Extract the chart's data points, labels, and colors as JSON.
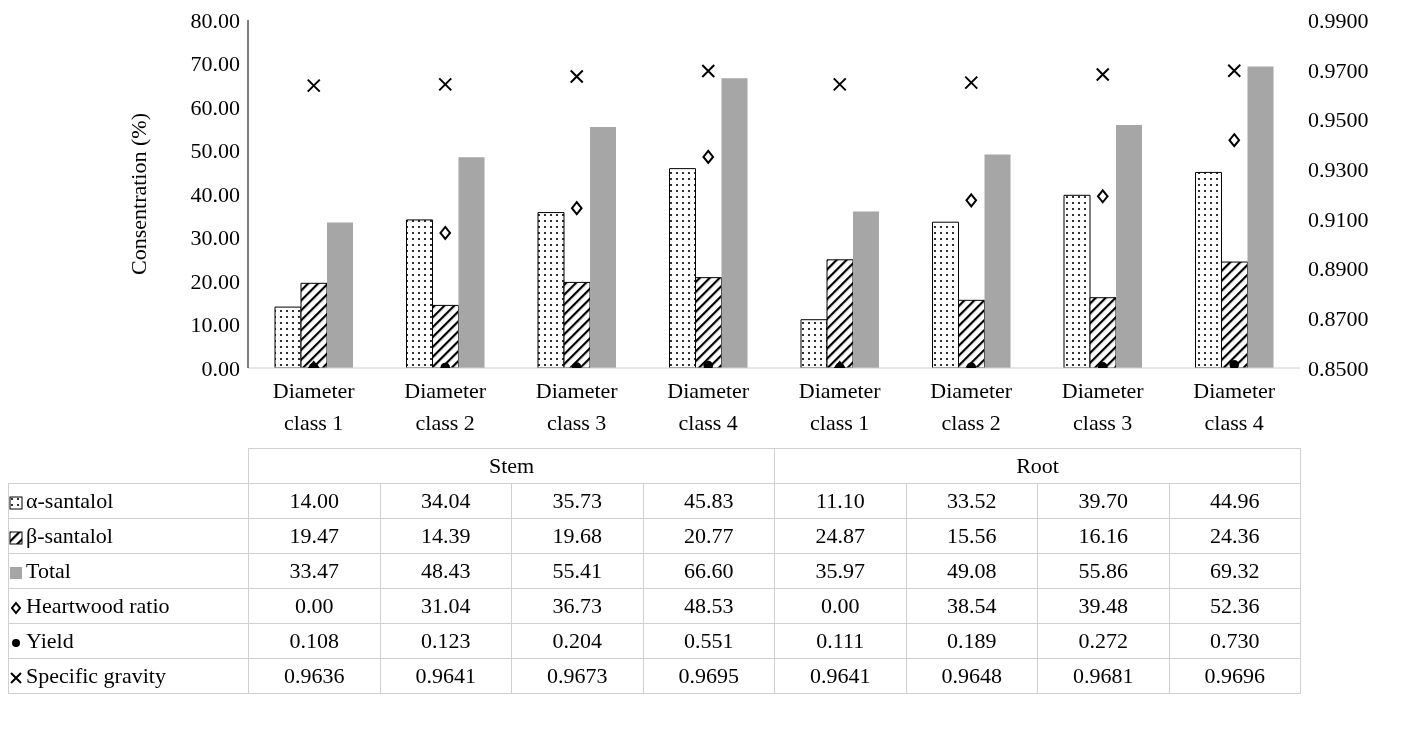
{
  "chart_data": {
    "type": "bar",
    "ylabel": "Consentration (%)",
    "categories": [
      "Diameter class 1",
      "Diameter class 2",
      "Diameter class 3",
      "Diameter class 4",
      "Diameter class 1",
      "Diameter class 2",
      "Diameter class 3",
      "Diameter class 4"
    ],
    "annotations": [
      "Stem",
      "Root"
    ],
    "series": [
      {
        "name": "α-santalol",
        "color": "#000000",
        "values": [
          14.0,
          34.04,
          35.73,
          45.83,
          11.1,
          33.52,
          39.7,
          44.96
        ],
        "value_labels": [
          "14.00",
          "34.04",
          "35.73",
          "45.83",
          "11.10",
          "33.52",
          "39.70",
          "44.96"
        ]
      },
      {
        "name": "β-santalol",
        "color": "#000000",
        "values": [
          19.47,
          14.39,
          19.68,
          20.77,
          24.87,
          15.56,
          16.16,
          24.36
        ],
        "value_labels": [
          "19.47",
          "14.39",
          "19.68",
          "20.77",
          "24.87",
          "15.56",
          "16.16",
          "24.36"
        ]
      },
      {
        "name": "Total",
        "color": "#a6a6a6",
        "values": [
          33.47,
          48.43,
          55.41,
          66.6,
          35.97,
          49.08,
          55.86,
          69.32
        ],
        "value_labels": [
          "33.47",
          "48.43",
          "55.41",
          "66.60",
          "35.97",
          "49.08",
          "55.86",
          "69.32"
        ]
      },
      {
        "name": "Heartwood ratio",
        "type": "scatter",
        "marker": "diamond",
        "color": "#000000",
        "values": [
          0.0,
          31.04,
          36.73,
          48.53,
          0.0,
          38.54,
          39.48,
          52.36
        ],
        "value_labels": [
          "0.00",
          "31.04",
          "36.73",
          "48.53",
          "0.00",
          "38.54",
          "39.48",
          "52.36"
        ]
      },
      {
        "name": "Yield",
        "type": "scatter",
        "marker": "circle",
        "color": "#000000",
        "values": [
          0.108,
          0.123,
          0.204,
          0.551,
          0.111,
          0.189,
          0.272,
          0.73
        ],
        "value_labels": [
          "0.108",
          "0.123",
          "0.204",
          "0.551",
          "0.111",
          "0.189",
          "0.272",
          "0.730"
        ]
      },
      {
        "name": "Specific gravity",
        "type": "scatter",
        "marker": "cross",
        "axis": "y2",
        "color": "#000000",
        "values": [
          0.9636,
          0.9641,
          0.9673,
          0.9695,
          0.9641,
          0.9648,
          0.9681,
          0.9696
        ],
        "value_labels": [
          "0.9636",
          "0.9641",
          "0.9673",
          "0.9695",
          "0.9641",
          "0.9648",
          "0.9681",
          "0.9696"
        ]
      }
    ],
    "ylim": [
      0,
      80
    ],
    "yticks": [
      {
        "value": 0,
        "label": "0.00"
      },
      {
        "value": 10,
        "label": "10.00"
      },
      {
        "value": 20,
        "label": "20.00"
      },
      {
        "value": 30,
        "label": "30.00"
      },
      {
        "value": 40,
        "label": "40.00"
      },
      {
        "value": 50,
        "label": "50.00"
      },
      {
        "value": 60,
        "label": "60.00"
      },
      {
        "value": 70,
        "label": "70.00"
      },
      {
        "value": 80,
        "label": "80.00"
      }
    ],
    "y2lim": [
      0.85,
      0.99
    ],
    "y2ticks": [
      {
        "value": 0.85,
        "label": "0.8500"
      },
      {
        "value": 0.87,
        "label": "0.8700"
      },
      {
        "value": 0.89,
        "label": "0.8900"
      },
      {
        "value": 0.91,
        "label": "0.9100"
      },
      {
        "value": 0.93,
        "label": "0.9300"
      },
      {
        "value": 0.95,
        "label": "0.9500"
      },
      {
        "value": 0.97,
        "label": "0.9700"
      },
      {
        "value": 0.99,
        "label": "0.9900"
      }
    ],
    "grid": false,
    "legend": "bottom"
  }
}
